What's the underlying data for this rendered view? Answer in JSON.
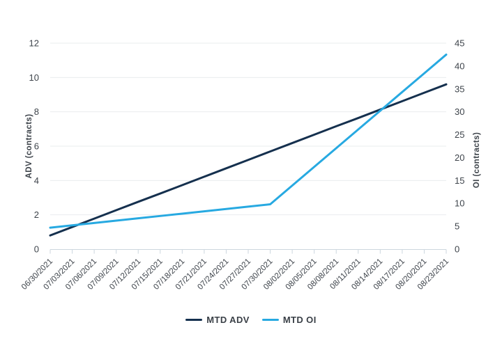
{
  "chart_data": {
    "type": "line",
    "title": "",
    "categories": [
      "06/30/2021",
      "07/03/2021",
      "07/06/2021",
      "07/09/2021",
      "07/12/2021",
      "07/15/2021",
      "07/18/2021",
      "07/21/2021",
      "07/24/2021",
      "07/27/2021",
      "07/30/2021",
      "08/02/2021",
      "08/05/2021",
      "08/08/2021",
      "08/11/2021",
      "08/14/2021",
      "08/17/2021",
      "08/20/2021",
      "08/23/2021"
    ],
    "series": [
      {
        "name": "MTD ADV",
        "axis": "left",
        "color": "#15304e",
        "values": [
          0.8,
          1.29,
          1.78,
          2.27,
          2.76,
          3.24,
          3.73,
          4.22,
          4.71,
          5.2,
          5.69,
          6.18,
          6.67,
          7.16,
          7.64,
          8.13,
          8.62,
          9.11,
          9.6
        ]
      },
      {
        "name": "MTD OI",
        "axis": "right",
        "color": "#27a9e1",
        "values": [
          4.7,
          5.21,
          5.72,
          6.23,
          6.74,
          7.25,
          7.76,
          8.27,
          8.78,
          9.29,
          9.8,
          13.89,
          17.98,
          22.06,
          26.15,
          30.24,
          34.33,
          38.41,
          42.5
        ]
      }
    ],
    "left_axis": {
      "label": "ADV (contracts)",
      "min": 0,
      "max": 12,
      "ticks": [
        0,
        2,
        4,
        6,
        8,
        10,
        12
      ]
    },
    "right_axis": {
      "label": "OI (contracts)",
      "min": 0,
      "max": 45,
      "ticks": [
        0,
        5,
        10,
        15,
        20,
        25,
        30,
        35,
        40,
        45
      ]
    },
    "grid": "horizontal",
    "legend_position": "bottom",
    "style_colors": {
      "gridline": "#e9ecee",
      "axis_line": "#ccd6de",
      "tick_text": "#3e444b",
      "background": "#ffffff"
    }
  }
}
